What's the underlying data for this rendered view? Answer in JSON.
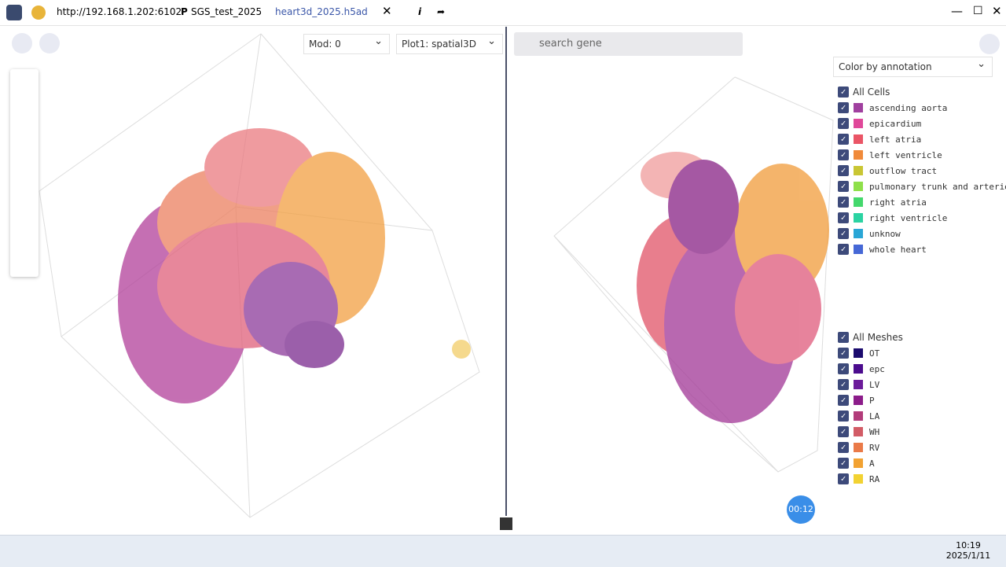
{
  "browser": {
    "address": "http://192.168.1.202:6102",
    "tab_icon": "P",
    "tab_project": "SGS_test_2025",
    "tab_file": "heart3d_2025.h5ad"
  },
  "left_panel": {
    "mod_select": "Mod: 0",
    "plot_select": "Plot1: spatial3D"
  },
  "right_panel": {
    "search_placeholder": "search gene",
    "color_select": "Color by annotation",
    "cells": {
      "title": "All Cells",
      "items": [
        {
          "label": "ascending aorta",
          "color": "#a0409f"
        },
        {
          "label": "epicardium",
          "color": "#e0489a"
        },
        {
          "label": "left atria",
          "color": "#ea5566"
        },
        {
          "label": "left ventricle",
          "color": "#f08a3a"
        },
        {
          "label": "outflow tract",
          "color": "#c9c634"
        },
        {
          "label": "pulmonary trunk and arteries",
          "color": "#8fe04a"
        },
        {
          "label": "right atria",
          "color": "#44d86c"
        },
        {
          "label": "right ventricle",
          "color": "#2bd3a2"
        },
        {
          "label": "unknow",
          "color": "#2aa6d6"
        },
        {
          "label": "whole heart",
          "color": "#4668d6"
        }
      ]
    },
    "meshes": {
      "title": "All Meshes",
      "items": [
        {
          "label": "OT",
          "color": "#1b0b6e"
        },
        {
          "label": "epc",
          "color": "#4b0c8e"
        },
        {
          "label": "LV",
          "color": "#6c1b9a"
        },
        {
          "label": "P",
          "color": "#8c1c8a"
        },
        {
          "label": "LA",
          "color": "#b23c7a"
        },
        {
          "label": "WH",
          "color": "#d25c66"
        },
        {
          "label": "RV",
          "color": "#ea7a48"
        },
        {
          "label": "A",
          "color": "#f2a232"
        },
        {
          "label": "RA",
          "color": "#f2d232"
        }
      ]
    },
    "timer": "00:12"
  },
  "taskbar": {
    "time": "10:19",
    "date": "2025/1/11"
  }
}
